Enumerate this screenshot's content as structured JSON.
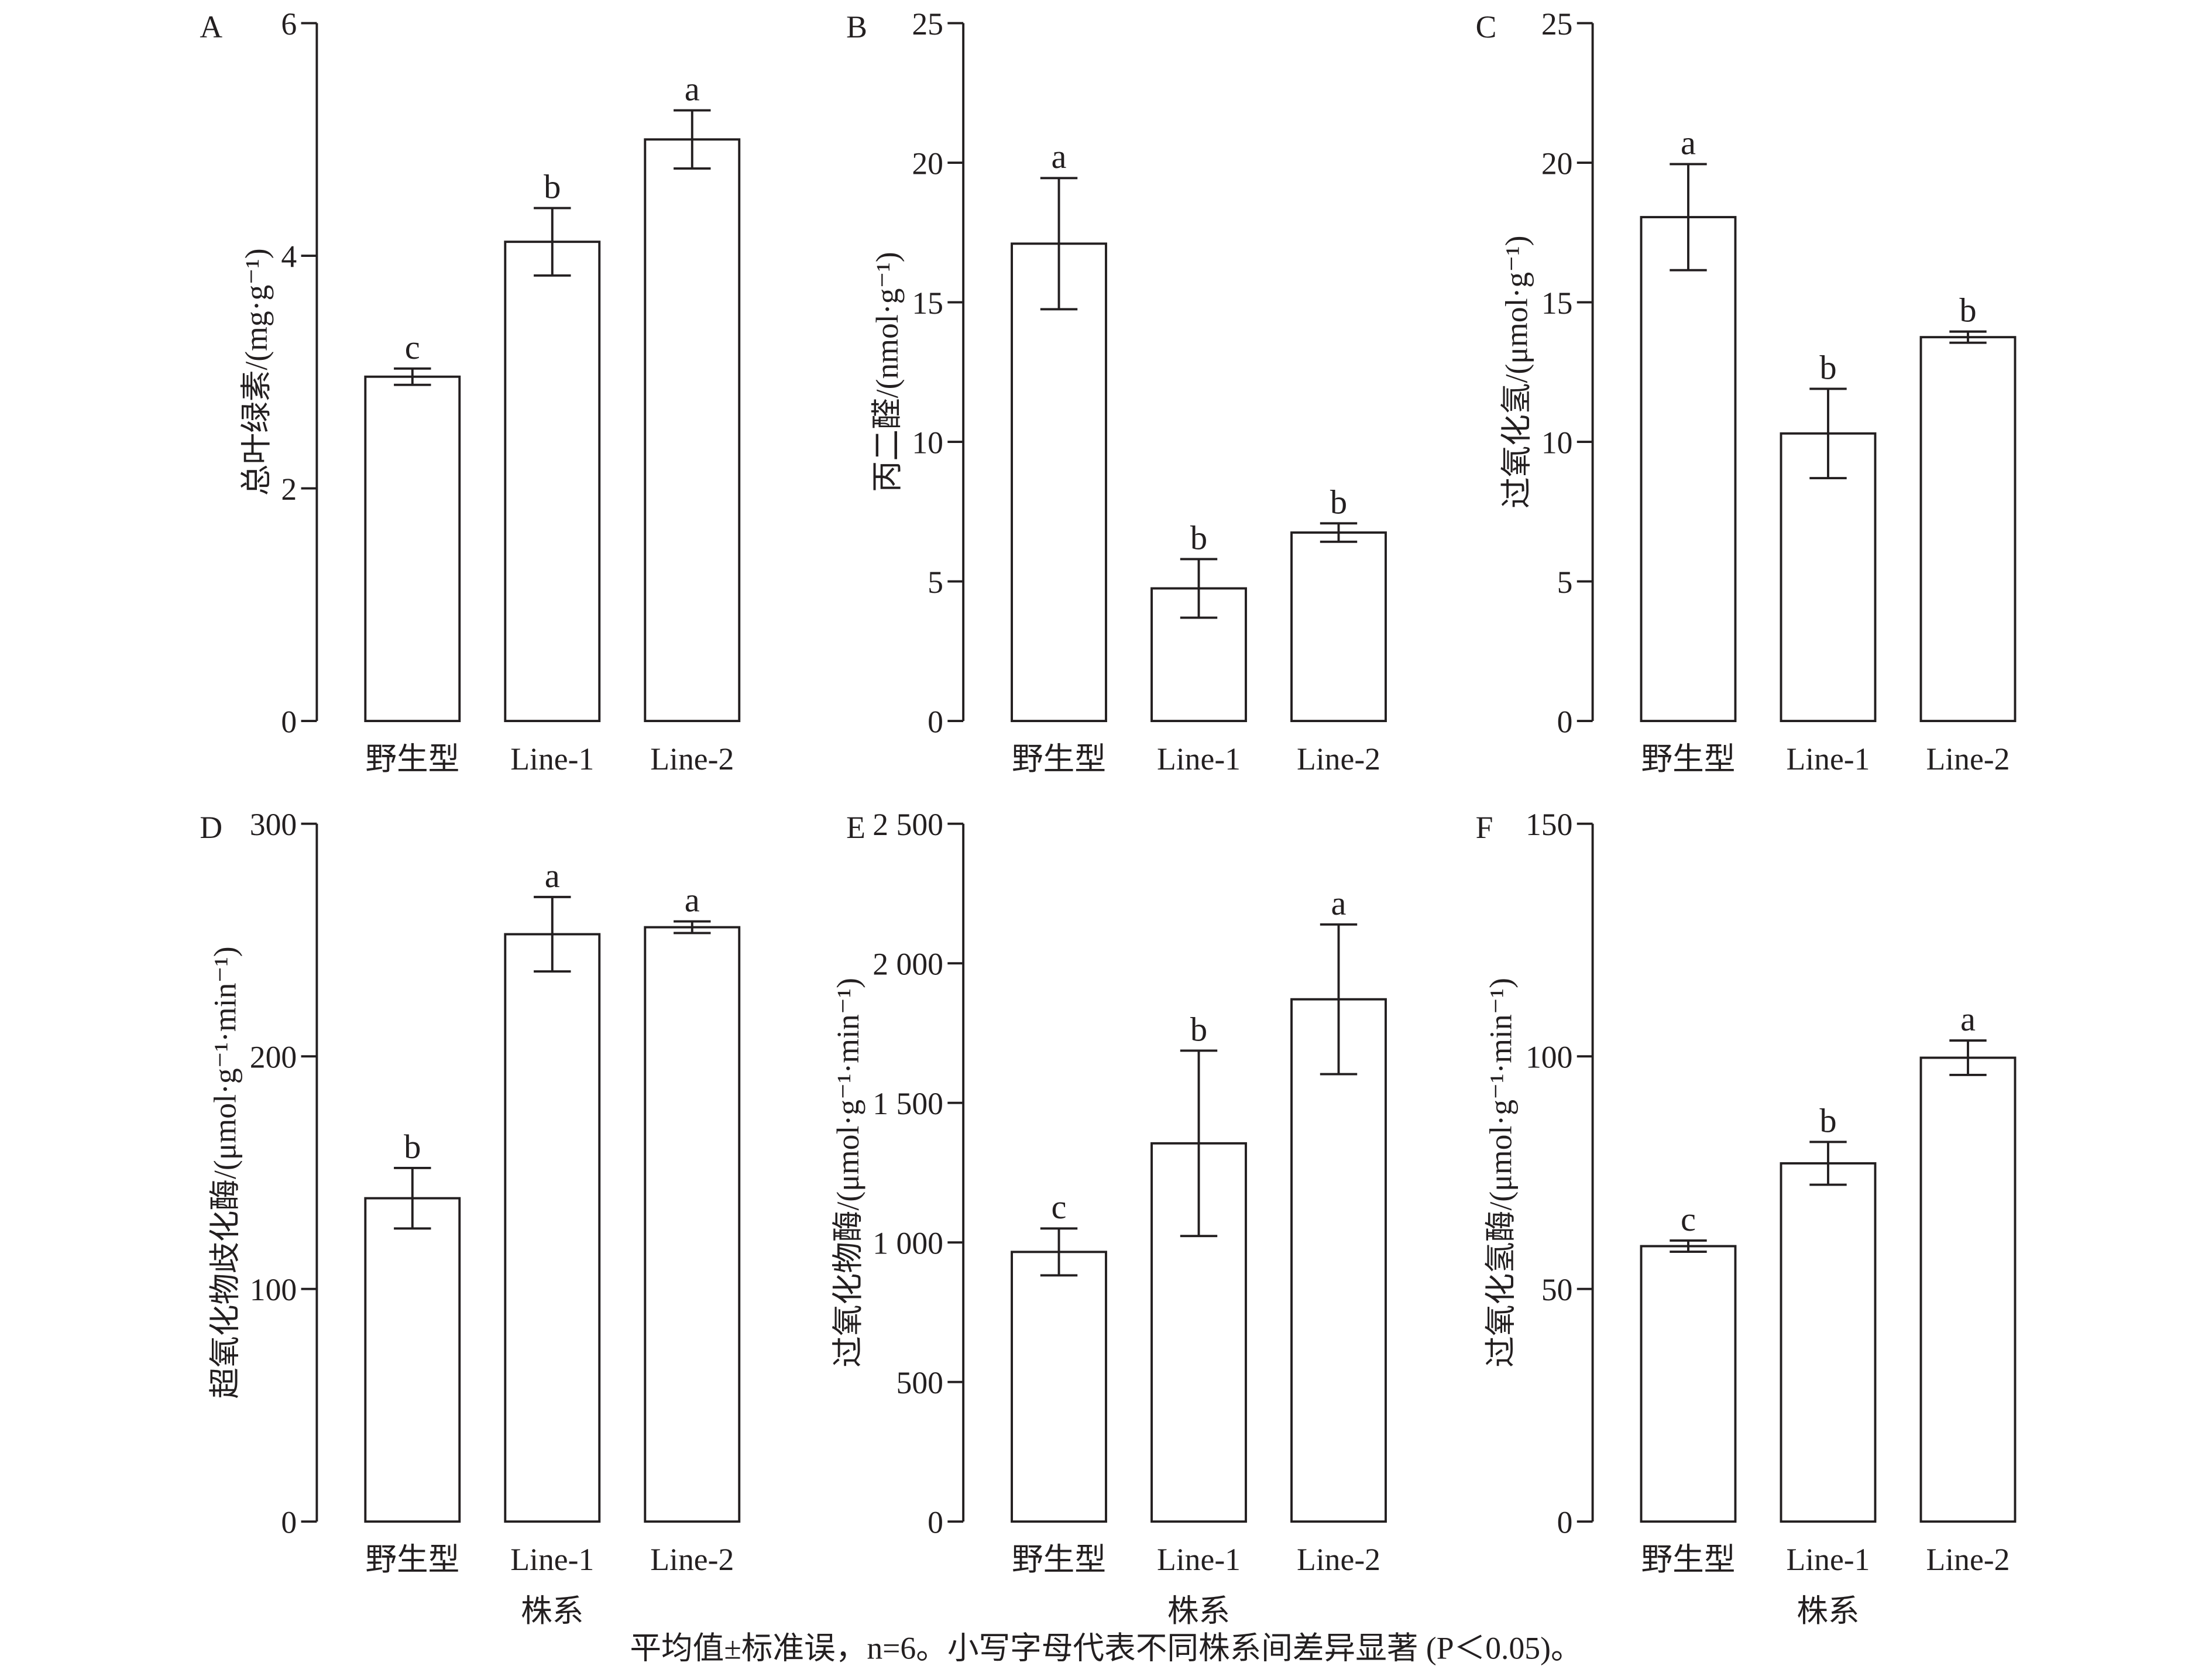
{
  "chart_data": [
    {
      "panel": "A",
      "type": "bar",
      "categories": [
        "野生型",
        "Line-1",
        "Line-2"
      ],
      "values": [
        2.96,
        4.12,
        5.0
      ],
      "errors": [
        0.07,
        0.29,
        0.25
      ],
      "letters": [
        "c",
        "b",
        "a"
      ],
      "ylabel": "总叶绿素/(mg·g⁻¹)",
      "xlabel": "",
      "ylim": [
        0,
        6
      ],
      "yticks": [
        0,
        2,
        4,
        6
      ],
      "ytick_labels": [
        "0",
        "2",
        "4",
        "6"
      ],
      "grid": false
    },
    {
      "panel": "B",
      "type": "bar",
      "categories": [
        "野生型",
        "Line-1",
        "Line-2"
      ],
      "values": [
        17.1,
        4.75,
        6.75
      ],
      "errors": [
        2.35,
        1.05,
        0.33
      ],
      "letters": [
        "a",
        "b",
        "b"
      ],
      "ylabel": "丙二醛/(nmol·g⁻¹)",
      "xlabel": "",
      "ylim": [
        0,
        25
      ],
      "yticks": [
        0,
        5,
        10,
        15,
        20,
        25
      ],
      "ytick_labels": [
        "0",
        "5",
        "10",
        "15",
        "20",
        "25"
      ],
      "grid": false
    },
    {
      "panel": "C",
      "type": "bar",
      "categories": [
        "野生型",
        "Line-1",
        "Line-2"
      ],
      "values": [
        18.05,
        10.3,
        13.75
      ],
      "errors": [
        1.9,
        1.6,
        0.2
      ],
      "letters": [
        "a",
        "b",
        "b"
      ],
      "ylabel": "过氧化氢/(μmol·g⁻¹)",
      "xlabel": "",
      "ylim": [
        0,
        25
      ],
      "yticks": [
        0,
        5,
        10,
        15,
        20,
        25
      ],
      "ytick_labels": [
        "0",
        "5",
        "10",
        "15",
        "20",
        "25"
      ],
      "grid": false
    },
    {
      "panel": "D",
      "type": "bar",
      "categories": [
        "野生型",
        "Line-1",
        "Line-2"
      ],
      "values": [
        139,
        252.5,
        255.5
      ],
      "errors": [
        13,
        16,
        2.5
      ],
      "letters": [
        "b",
        "a",
        "a"
      ],
      "ylabel": "超氧化物歧化酶/(μmol·g⁻¹·min⁻¹)",
      "xlabel": "株系",
      "ylim": [
        0,
        300
      ],
      "yticks": [
        0,
        100,
        200,
        300
      ],
      "ytick_labels": [
        "0",
        "100",
        "200",
        "300"
      ],
      "grid": false
    },
    {
      "panel": "E",
      "type": "bar",
      "categories": [
        "野生型",
        "Line-1",
        "Line-2"
      ],
      "values": [
        966,
        1355,
        1871
      ],
      "errors": [
        84,
        332,
        268
      ],
      "letters": [
        "c",
        "b",
        "a"
      ],
      "ylabel": "过氧化物酶/(μmol·g⁻¹·min⁻¹)",
      "xlabel": "株系",
      "ylim": [
        0,
        2500
      ],
      "yticks": [
        0,
        500,
        1000,
        1500,
        2000,
        2500
      ],
      "ytick_labels": [
        "0",
        "500",
        "1 000",
        "1 500",
        "2 000",
        "2 500"
      ],
      "grid": false
    },
    {
      "panel": "F",
      "type": "bar",
      "categories": [
        "野生型",
        "Line-1",
        "Line-2"
      ],
      "values": [
        59.2,
        77,
        99.7
      ],
      "errors": [
        1.2,
        4.6,
        3.7
      ],
      "letters": [
        "c",
        "b",
        "a"
      ],
      "ylabel": "过氧化氢酶/(μmol·g⁻¹·min⁻¹)",
      "xlabel": "株系",
      "ylim": [
        0,
        150
      ],
      "yticks": [
        0,
        50,
        100,
        150
      ],
      "ytick_labels": [
        "0",
        "50",
        "100",
        "150"
      ],
      "grid": false
    }
  ],
  "caption": "平均值±标准误，n=6。小写字母代表不同株系间差异显著 (P＜0.05)。",
  "colors": {
    "bar_fill": "#ffffff",
    "stroke": "#231f20"
  }
}
